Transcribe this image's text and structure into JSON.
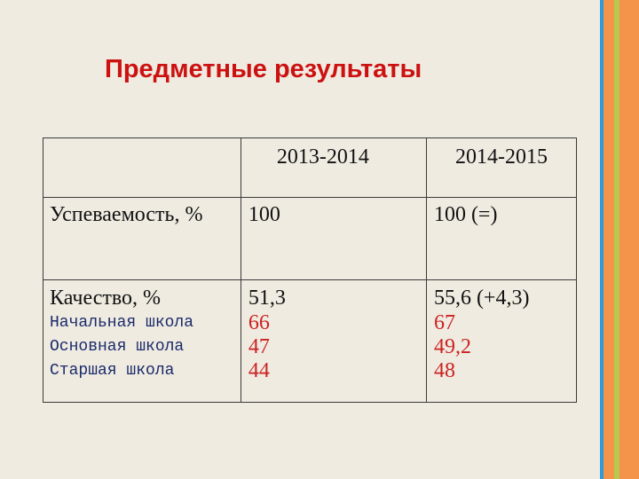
{
  "title": "Предметные результаты",
  "colors": {
    "title": "#cc1111",
    "sub_labels": "#1a2a6a",
    "values": "#cc2222",
    "background": "#efebe1",
    "stripe_1": "#2f9bd8",
    "stripe_2": "#f4934a",
    "stripe_3": "#b9c84e",
    "stripe_4": "#f4934a"
  },
  "table": {
    "headers": [
      "",
      "2013-2014",
      "2014-2015"
    ],
    "success": {
      "label": "Успеваемость, %",
      "y2013": "100",
      "y2014": "100 (=)"
    },
    "quality": {
      "label": "Качество, %",
      "y2013": "51,3",
      "y2014": "55,6 (+4,3)",
      "sub_rows": [
        {
          "label": "Начальная школа",
          "y2013": "66",
          "y2014": "67"
        },
        {
          "label": "Основная школа",
          "y2013": "47",
          "y2014": "49,2"
        },
        {
          "label": "Старшая школа",
          "y2013": "44",
          "y2014": "48"
        }
      ]
    }
  }
}
